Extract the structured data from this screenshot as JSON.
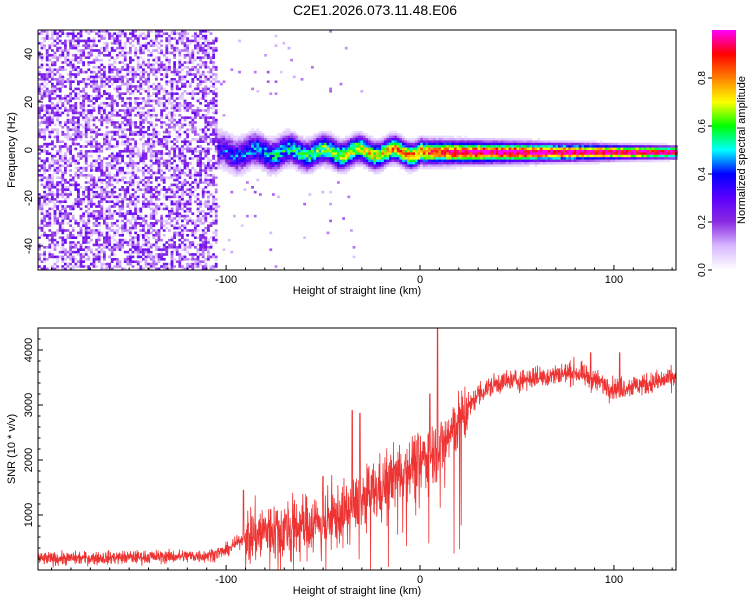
{
  "title": "C2E1.2026.073.11.48.E06",
  "chart_data": [
    {
      "type": "heatmap",
      "name": "spectrogram",
      "xlabel": "Height of straight line (km)",
      "ylabel": "Frequency (Hz)",
      "xlim": [
        -197,
        132
      ],
      "ylim": [
        -50,
        50
      ],
      "xticks": [
        -100,
        0,
        100
      ],
      "xtick_labels": [
        "-100",
        "0",
        "100"
      ],
      "yticks": [
        40,
        20,
        0,
        -20,
        -40
      ],
      "ytick_labels": [
        "40",
        "20",
        "0",
        "-20",
        "-40"
      ],
      "signal_band": {
        "noise_region_x": [
          -197,
          -100
        ],
        "onset_x": -105,
        "center_frequency_hz": -1,
        "halfwidth_hz_at_onset": 6,
        "halfwidth_hz_at_end": 2
      },
      "colorbar": {
        "label": "Normalized spectral amplitude",
        "range": [
          0,
          1
        ],
        "ticks": [
          0.0,
          0.2,
          0.4,
          0.6,
          0.8
        ],
        "tick_labels": [
          "0.0",
          "0.2",
          "0.4",
          "0.6",
          "0.8"
        ],
        "colors": [
          "#ffffff",
          "#d8b8ff",
          "#8a2be2",
          "#5b00ff",
          "#0000ff",
          "#00ffff",
          "#00ff00",
          "#ffff00",
          "#ff8000",
          "#ff0000",
          "#ff00ff"
        ]
      }
    },
    {
      "type": "line",
      "name": "snr",
      "xlabel": "Height of straight line (km)",
      "ylabel": "SNR (10 * v/v)",
      "xlim": [
        -197,
        132
      ],
      "ylim": [
        0,
        4400
      ],
      "xticks": [
        -100,
        0,
        100
      ],
      "xtick_labels": [
        "-100",
        "0",
        "100"
      ],
      "yticks": [
        1000,
        2000,
        3000,
        4000
      ],
      "ytick_labels": [
        "1000",
        "2000",
        "3000",
        "4000"
      ],
      "line_color": "#ee3333",
      "trend": {
        "x": [
          -197,
          -150,
          -110,
          -100,
          -90,
          -80,
          -60,
          -40,
          -20,
          -10,
          0,
          10,
          20,
          30,
          40,
          60,
          80,
          100,
          120,
          132
        ],
        "y": [
          200,
          230,
          260,
          350,
          600,
          700,
          800,
          1000,
          1500,
          1800,
          2000,
          2200,
          2700,
          3200,
          3400,
          3500,
          3600,
          3300,
          3400,
          3500
        ]
      },
      "spikes": [
        {
          "x": -91,
          "y": 1450
        },
        {
          "x": -50,
          "y": 1700
        },
        {
          "x": -35,
          "y": 2900
        },
        {
          "x": -31,
          "y": 2850
        },
        {
          "x": 5,
          "y": 3200
        },
        {
          "x": 9,
          "y": 4400
        },
        {
          "x": 88,
          "y": 3950
        },
        {
          "x": 103,
          "y": 3950
        }
      ]
    }
  ]
}
